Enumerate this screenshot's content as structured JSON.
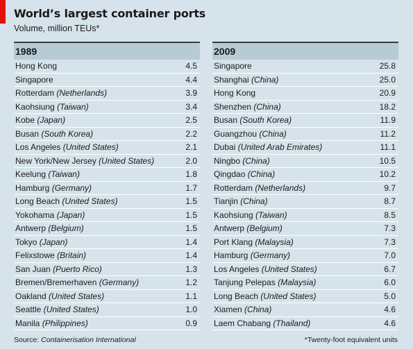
{
  "title": "World’s largest container ports",
  "subtitle": "Volume, million TEUs*",
  "source_prefix": "Source: ",
  "source_name": "Containerisation International",
  "footnote": "*Twenty-foot equivalent units",
  "chart_data": [
    {
      "type": "table",
      "title": "1989",
      "rows": [
        {
          "port": "Hong Kong",
          "country": "",
          "value": "4.5"
        },
        {
          "port": "Singapore",
          "country": "",
          "value": "4.4"
        },
        {
          "port": "Rotterdam",
          "country": "(Netherlands)",
          "value": "3.9"
        },
        {
          "port": "Kaohsiung",
          "country": "(Taiwan)",
          "value": "3.4"
        },
        {
          "port": "Kobe",
          "country": "(Japan)",
          "value": "2.5"
        },
        {
          "port": "Busan",
          "country": "(South Korea)",
          "value": "2.2"
        },
        {
          "port": "Los Angeles",
          "country": "(United States)",
          "value": "2.1"
        },
        {
          "port": "New York/New Jersey",
          "country": "(United States)",
          "value": "2.0"
        },
        {
          "port": "Keelung",
          "country": "(Taiwan)",
          "value": "1.8"
        },
        {
          "port": "Hamburg",
          "country": "(Germany)",
          "value": "1.7"
        },
        {
          "port": "Long Beach",
          "country": "(United States)",
          "value": "1.5"
        },
        {
          "port": "Yokohama",
          "country": "(Japan)",
          "value": "1.5"
        },
        {
          "port": "Antwerp",
          "country": "(Belgium)",
          "value": "1.5"
        },
        {
          "port": "Tokyo",
          "country": "(Japan)",
          "value": "1.4"
        },
        {
          "port": "Felixstowe",
          "country": "(Britain)",
          "value": "1.4"
        },
        {
          "port": "San Juan",
          "country": "(Puerto Rico)",
          "value": "1.3"
        },
        {
          "port": "Bremen/Bremerhaven",
          "country": "(Germany)",
          "value": "1.2"
        },
        {
          "port": "Oakland",
          "country": "(United States)",
          "value": "1.1"
        },
        {
          "port": "Seattle",
          "country": "(United States)",
          "value": "1.0"
        },
        {
          "port": "Manila",
          "country": "(Philippines)",
          "value": "0.9"
        }
      ]
    },
    {
      "type": "table",
      "title": "2009",
      "rows": [
        {
          "port": "Singapore",
          "country": "",
          "value": "25.8"
        },
        {
          "port": "Shanghai",
          "country": "(China)",
          "value": "25.0"
        },
        {
          "port": "Hong Kong",
          "country": "",
          "value": "20.9"
        },
        {
          "port": "Shenzhen",
          "country": "(China)",
          "value": "18.2"
        },
        {
          "port": "Busan",
          "country": "(South Korea)",
          "value": "11.9"
        },
        {
          "port": "Guangzhou",
          "country": "(China)",
          "value": "11.2"
        },
        {
          "port": "Dubai",
          "country": "(United Arab Emirates)",
          "value": "11.1"
        },
        {
          "port": "Ningbo",
          "country": "(China)",
          "value": "10.5"
        },
        {
          "port": "Qingdao",
          "country": "(China)",
          "value": "10.2"
        },
        {
          "port": "Rotterdam",
          "country": "(Netherlands)",
          "value": "9.7"
        },
        {
          "port": "Tianjin",
          "country": "(China)",
          "value": "8.7"
        },
        {
          "port": "Kaohsiung",
          "country": "(Taiwan)",
          "value": "8.5"
        },
        {
          "port": "Antwerp",
          "country": "(Belgium)",
          "value": "7.3"
        },
        {
          "port": "Port Klang",
          "country": "(Malaysia)",
          "value": "7.3"
        },
        {
          "port": "Hamburg",
          "country": "(Germany)",
          "value": "7.0"
        },
        {
          "port": "Los Angeles",
          "country": "(United States)",
          "value": "6.7"
        },
        {
          "port": "Tanjung Pelepas",
          "country": "(Malaysia)",
          "value": "6.0"
        },
        {
          "port": "Long Beach",
          "country": "(United States)",
          "value": "5.0"
        },
        {
          "port": "Xiamen",
          "country": "(China)",
          "value": "4.6"
        },
        {
          "port": "Laem Chabang",
          "country": "(Thailand)",
          "value": "4.6"
        }
      ]
    }
  ]
}
